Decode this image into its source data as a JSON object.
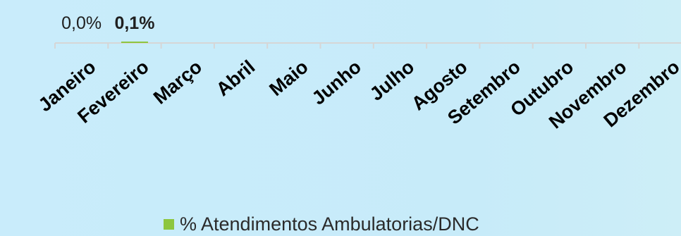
{
  "chart_data": {
    "type": "bar",
    "categories": [
      "Janeiro",
      "Fevereiro",
      "Março",
      "Abril",
      "Maio",
      "Junho",
      "Julho",
      "Agosto",
      "Setembro",
      "Outubro",
      "Novembro",
      "Dezembro"
    ],
    "series": [
      {
        "name": "% Atendimentos Ambulatorias/DNC",
        "values": [
          0.0,
          0.1,
          null,
          null,
          null,
          null,
          null,
          null,
          null,
          null,
          null,
          null
        ],
        "data_labels": [
          "0,0%",
          "0,1%",
          "",
          "",
          "",
          "",
          "",
          "",
          "",
          "",
          "",
          ""
        ],
        "color": "#8dc63f"
      }
    ],
    "title": "",
    "xlabel": "",
    "ylabel": "",
    "legend_position": "bottom",
    "grid": false
  },
  "colors": {
    "bar": "#8dc63f",
    "axis": "#d6d6d6",
    "category_text": "#000000",
    "label_text": "#1f1f1f"
  }
}
